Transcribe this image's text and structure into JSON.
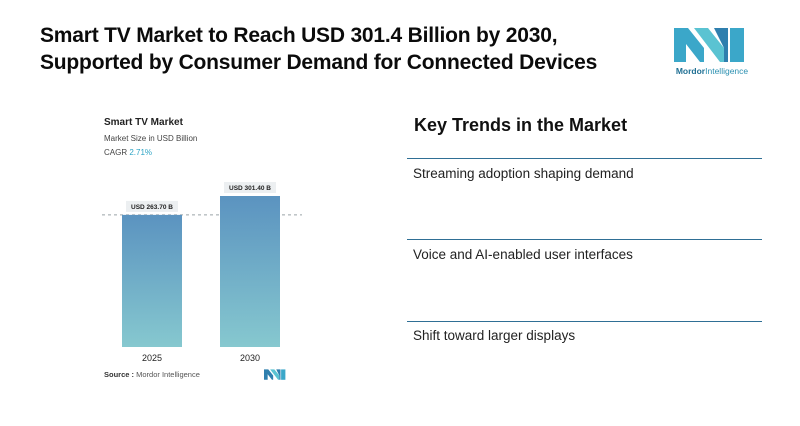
{
  "headline": {
    "line1": "Smart TV Market to Reach USD 301.4 Billion by 2030,",
    "line2": "Supported by Consumer Demand for Connected Devices"
  },
  "logo": {
    "brand_part1": "Mordor",
    "brand_part2": "Intelligence",
    "icon": "mordor-intelligence-logo"
  },
  "chart_card": {
    "title": "Smart TV Market",
    "subtitle": "Market Size in USD Billion",
    "cagr_label": "CAGR",
    "cagr_value": "2.71%",
    "source_label": "Source :",
    "source_value": "Mordor Intelligence"
  },
  "chart_data": {
    "type": "bar",
    "categories": [
      "2025",
      "2030"
    ],
    "values": [
      263.7,
      301.4
    ],
    "data_labels": [
      "USD 263.70 B",
      "USD 301.40 B"
    ],
    "title": "Smart TV Market",
    "ylabel": "Market Size in USD Billion",
    "ylim": [
      0,
      301.4
    ],
    "grid": false,
    "reference_line": "dashed at 2025 value",
    "colors": {
      "bar_top": "#5b93c0",
      "bar_bottom": "#86c8cf",
      "label_bg": "#eceff1"
    }
  },
  "trends": {
    "title": "Key Trends in the Market",
    "items": [
      "Streaming adoption shaping demand",
      "Voice and AI-enabled user interfaces",
      "Shift toward larger displays"
    ]
  },
  "colors": {
    "accent": "#2f6f95",
    "brand_teal": "#2aa3c4"
  }
}
